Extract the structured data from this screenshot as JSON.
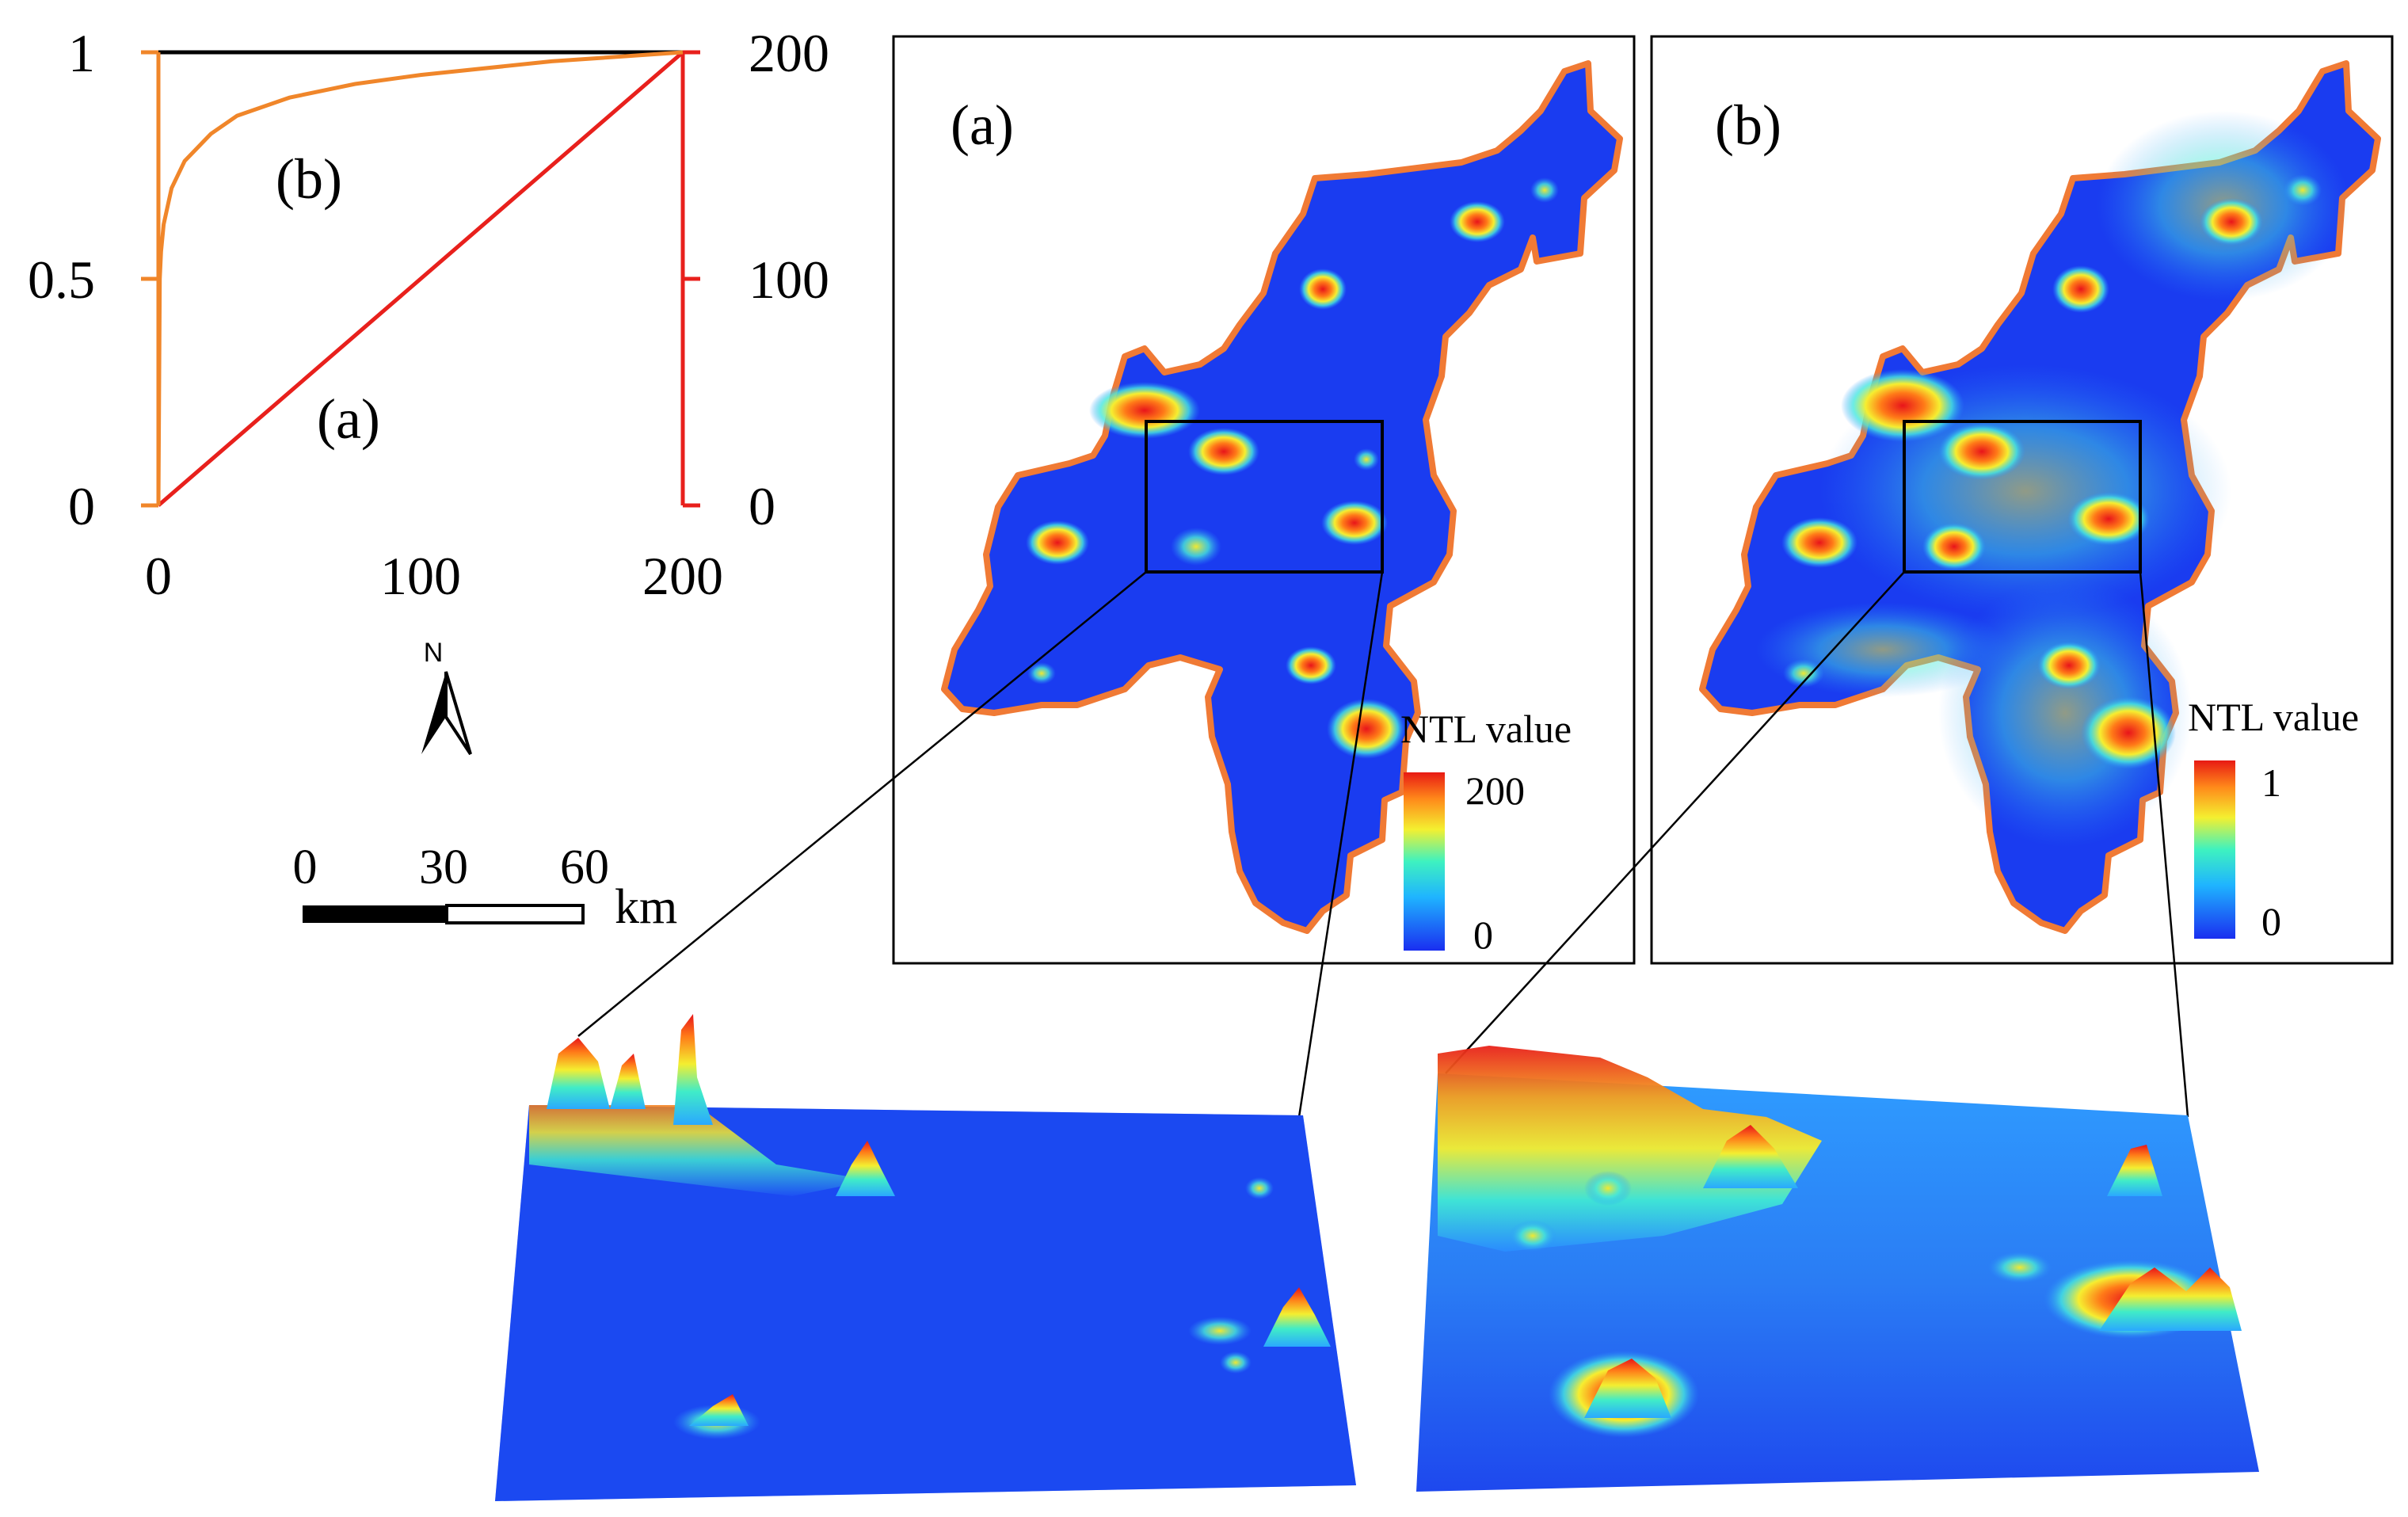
{
  "colors": {
    "curve_a": "#e8201c",
    "curve_b": "#f0862a",
    "map_blue": "#1a3cf0",
    "map_border": "#f07a35",
    "frame": "#000000"
  },
  "chart_data": {
    "type": "line",
    "title": "",
    "xlabel": "",
    "ylabel": "",
    "xlim": [
      0,
      200
    ],
    "ylim_left": [
      0,
      1
    ],
    "ylim_right": [
      0,
      200
    ],
    "x_ticks": [
      "0",
      "100",
      "200"
    ],
    "y_left_ticks": [
      "0",
      "0.5",
      "1"
    ],
    "y_right_ticks": [
      "0",
      "100",
      "200"
    ],
    "series": [
      {
        "name": "(a)",
        "axis": "right",
        "color": "#e8201c",
        "x": [
          0,
          50,
          100,
          150,
          200
        ],
        "y": [
          0,
          50,
          100,
          150,
          200
        ]
      },
      {
        "name": "(b)",
        "axis": "left",
        "color": "#f0862a",
        "x": [
          0,
          0.5,
          1,
          2,
          5,
          10,
          20,
          30,
          50,
          75,
          100,
          150,
          200
        ],
        "y": [
          0,
          0.5,
          0.56,
          0.62,
          0.7,
          0.76,
          0.82,
          0.86,
          0.9,
          0.93,
          0.95,
          0.98,
          1.0
        ]
      }
    ]
  },
  "map_a": {
    "label": "(a)",
    "legend_title": "NTL value",
    "legend_max": "200",
    "legend_min": "0"
  },
  "map_b": {
    "label": "(b)",
    "legend_title": "NTL value",
    "legend_max": "1",
    "legend_min": "0"
  },
  "north_arrow": {
    "label": "N"
  },
  "scale_bar": {
    "ticks": [
      "0",
      "30",
      "60"
    ],
    "unit": "km"
  },
  "surfaces": [
    "3d-surface-a",
    "3d-surface-b"
  ]
}
